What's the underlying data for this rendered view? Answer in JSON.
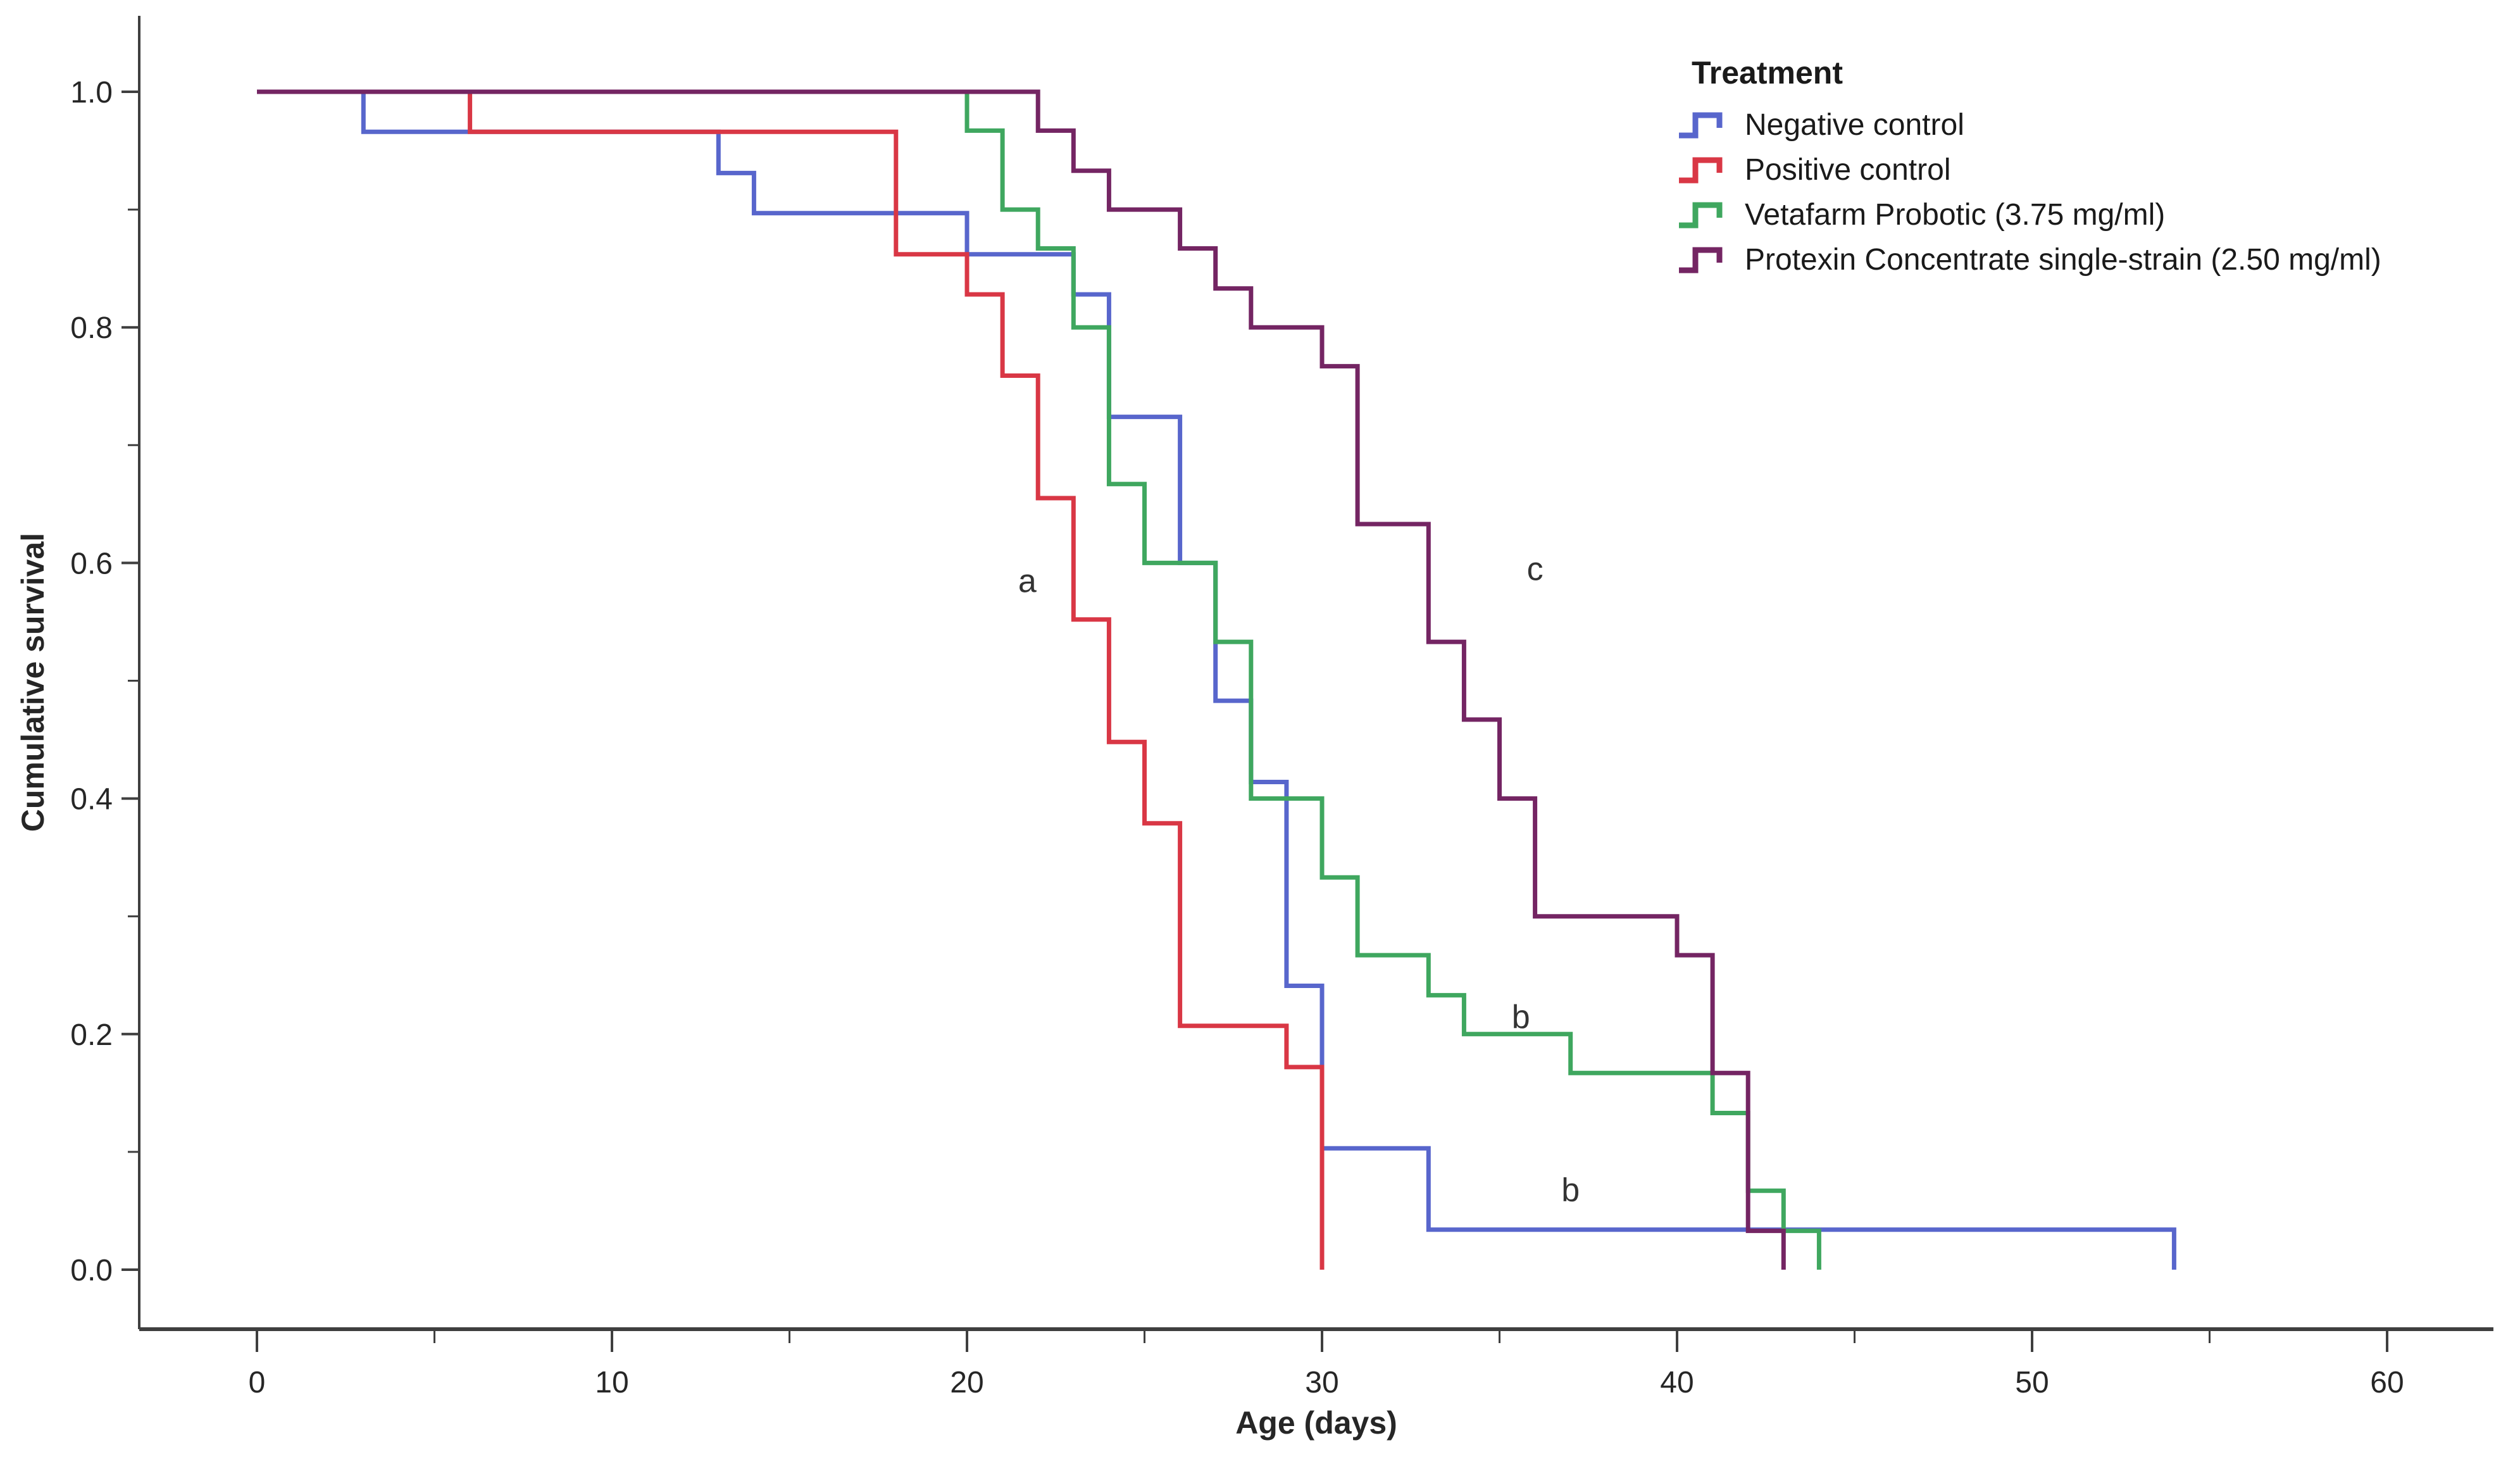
{
  "chart_data": {
    "type": "line",
    "subtype": "kaplan-meier-step",
    "title": "",
    "xlabel": "Age (days)",
    "ylabel": "Cumulative survival",
    "xlim": [
      0,
      60
    ],
    "ylim": [
      0.0,
      1.0
    ],
    "grid": "off",
    "legend_position": "top-right",
    "legend_title": "Treatment",
    "x_ticks_major": [
      0,
      10,
      20,
      30,
      40,
      50,
      60
    ],
    "x_ticks_minor": [
      5,
      15,
      25,
      35,
      45,
      55
    ],
    "y_ticks_major": [
      0.0,
      0.2,
      0.4,
      0.6,
      0.8,
      1.0
    ],
    "y_ticks_minor": [
      0.1,
      0.3,
      0.5,
      0.7,
      0.9
    ],
    "series": [
      {
        "name": "Negative control",
        "color": "#5866CC",
        "points": [
          [
            0,
            1
          ],
          [
            3,
            1
          ],
          [
            3,
            0.966
          ],
          [
            13,
            0.966
          ],
          [
            13,
            0.931
          ],
          [
            14,
            0.931
          ],
          [
            14,
            0.897
          ],
          [
            20,
            0.897
          ],
          [
            20,
            0.862
          ],
          [
            23,
            0.862
          ],
          [
            23,
            0.828
          ],
          [
            24,
            0.828
          ],
          [
            24,
            0.724
          ],
          [
            26,
            0.724
          ],
          [
            26,
            0.6
          ],
          [
            27,
            0.6
          ],
          [
            27,
            0.483
          ],
          [
            28,
            0.483
          ],
          [
            28,
            0.414
          ],
          [
            29,
            0.414
          ],
          [
            29,
            0.241
          ],
          [
            30,
            0.241
          ],
          [
            30,
            0.103
          ],
          [
            33,
            0.103
          ],
          [
            33,
            0.034
          ],
          [
            54,
            0.034
          ],
          [
            54,
            0
          ]
        ]
      },
      {
        "name": "Positive control",
        "color": "#D93745",
        "points": [
          [
            0,
            1
          ],
          [
            6,
            1
          ],
          [
            6,
            0.966
          ],
          [
            18,
            0.966
          ],
          [
            18,
            0.862
          ],
          [
            20,
            0.862
          ],
          [
            20,
            0.828
          ],
          [
            21,
            0.828
          ],
          [
            21,
            0.759
          ],
          [
            22,
            0.759
          ],
          [
            22,
            0.655
          ],
          [
            23,
            0.655
          ],
          [
            23,
            0.552
          ],
          [
            24,
            0.552
          ],
          [
            24,
            0.448
          ],
          [
            25,
            0.448
          ],
          [
            25,
            0.379
          ],
          [
            26,
            0.379
          ],
          [
            26,
            0.207
          ],
          [
            29,
            0.207
          ],
          [
            29,
            0.172
          ],
          [
            30,
            0.172
          ],
          [
            30,
            0
          ]
        ]
      },
      {
        "name": "Vetafarm Probotic (3.75 mg/ml)",
        "color": "#3FA75F",
        "points": [
          [
            0,
            1
          ],
          [
            20,
            1
          ],
          [
            20,
            0.967
          ],
          [
            21,
            0.967
          ],
          [
            21,
            0.9
          ],
          [
            22,
            0.9
          ],
          [
            22,
            0.867
          ],
          [
            23,
            0.867
          ],
          [
            23,
            0.8
          ],
          [
            24,
            0.8
          ],
          [
            24,
            0.667
          ],
          [
            25,
            0.667
          ],
          [
            25,
            0.6
          ],
          [
            27,
            0.6
          ],
          [
            27,
            0.533
          ],
          [
            28,
            0.533
          ],
          [
            28,
            0.4
          ],
          [
            30,
            0.4
          ],
          [
            30,
            0.333
          ],
          [
            31,
            0.333
          ],
          [
            31,
            0.267
          ],
          [
            33,
            0.267
          ],
          [
            33,
            0.233
          ],
          [
            34,
            0.233
          ],
          [
            34,
            0.2
          ],
          [
            37,
            0.2
          ],
          [
            37,
            0.167
          ],
          [
            41,
            0.167
          ],
          [
            41,
            0.133
          ],
          [
            42,
            0.133
          ],
          [
            42,
            0.067
          ],
          [
            43,
            0.067
          ],
          [
            43,
            0.033
          ],
          [
            44,
            0.033
          ],
          [
            44,
            0
          ]
        ]
      },
      {
        "name": "Protexin Concentrate single-strain (2.50 mg/ml)",
        "color": "#742563",
        "points": [
          [
            0,
            1
          ],
          [
            22,
            1
          ],
          [
            22,
            0.967
          ],
          [
            23,
            0.967
          ],
          [
            23,
            0.933
          ],
          [
            24,
            0.933
          ],
          [
            24,
            0.9
          ],
          [
            26,
            0.9
          ],
          [
            26,
            0.867
          ],
          [
            27,
            0.867
          ],
          [
            27,
            0.833
          ],
          [
            28,
            0.833
          ],
          [
            28,
            0.8
          ],
          [
            30,
            0.8
          ],
          [
            30,
            0.767
          ],
          [
            31,
            0.767
          ],
          [
            31,
            0.633
          ],
          [
            33,
            0.633
          ],
          [
            33,
            0.533
          ],
          [
            34,
            0.533
          ],
          [
            34,
            0.467
          ],
          [
            35,
            0.467
          ],
          [
            35,
            0.4
          ],
          [
            36,
            0.4
          ],
          [
            36,
            0.3
          ],
          [
            40,
            0.3
          ],
          [
            40,
            0.267
          ],
          [
            41,
            0.267
          ],
          [
            41,
            0.167
          ],
          [
            42,
            0.167
          ],
          [
            42,
            0.033
          ],
          [
            43,
            0.033
          ],
          [
            43,
            0
          ]
        ]
      }
    ],
    "annotations": [
      {
        "text": "a",
        "day": 21.7,
        "survival": 0.585
      },
      {
        "text": "c",
        "day": 36.0,
        "survival": 0.595
      },
      {
        "text": "b",
        "day": 35.6,
        "survival": 0.215
      },
      {
        "text": "b",
        "day": 37.0,
        "survival": 0.068
      }
    ]
  },
  "axes": {
    "x_title": "Age (days)",
    "y_title": "Cumulative survival",
    "x_tick_labels": [
      {
        "value": 0,
        "label": "0"
      },
      {
        "value": 10,
        "label": "10"
      },
      {
        "value": 20,
        "label": "20"
      },
      {
        "value": 30,
        "label": "30"
      },
      {
        "value": 40,
        "label": "40"
      },
      {
        "value": 50,
        "label": "50"
      },
      {
        "value": 60,
        "label": "60"
      }
    ],
    "y_tick_labels": [
      {
        "value": 0.0,
        "label": "0.0"
      },
      {
        "value": 0.2,
        "label": "0.2"
      },
      {
        "value": 0.4,
        "label": "0.4"
      },
      {
        "value": 0.6,
        "label": "0.6"
      },
      {
        "value": 0.8,
        "label": "0.8"
      },
      {
        "value": 1.0,
        "label": "1.0"
      }
    ]
  },
  "legend": {
    "title": "Treatment",
    "items": [
      {
        "label": "Negative control",
        "color": "#5866CC"
      },
      {
        "label": "Positive control",
        "color": "#D93745"
      },
      {
        "label": "Vetafarm Probotic (3.75 mg/ml)",
        "color": "#3FA75F"
      },
      {
        "label": "Protexin Concentrate single-strain (2.50 mg/ml)",
        "color": "#742563"
      }
    ]
  },
  "style": {
    "axis_color": "#3F3F3F",
    "tick_label_color": "#262626",
    "annotation_color": "#333333",
    "background": "#FFFFFF"
  }
}
